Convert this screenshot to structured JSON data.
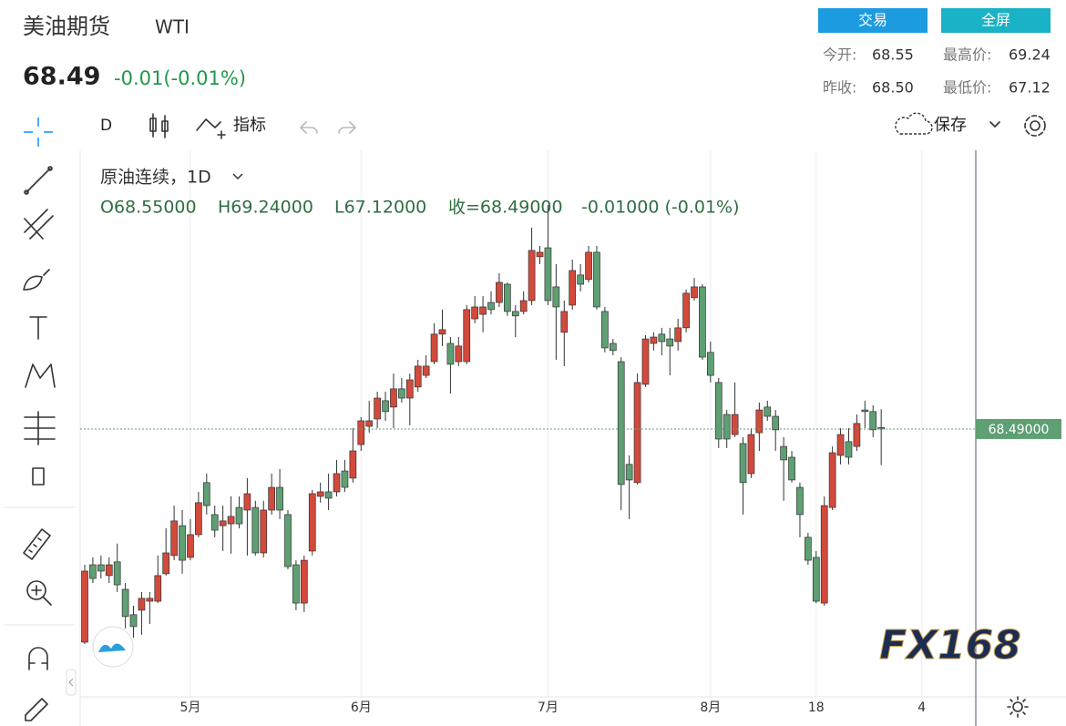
{
  "header": {
    "title": "美油期货",
    "symbol": "WTI",
    "price": "68.49",
    "change": "-0.01(-0.01%)"
  },
  "buttons": [
    "交易",
    "全屏"
  ],
  "stats": [
    {
      "label": "今开:",
      "value": "68.55"
    },
    {
      "label": "最高价:",
      "value": "69.24"
    },
    {
      "label": "昨收:",
      "value": "68.50"
    },
    {
      "label": "最低价:",
      "value": "67.12"
    }
  ],
  "toolbar": {
    "interval": "D",
    "indicators": "指标",
    "save": "保存"
  },
  "legend": {
    "title": "原油连续，1D",
    "open": "O68.55000",
    "high": "H69.24000",
    "low": "L67.12000",
    "close": "收=68.49000",
    "change": "-0.01000 (-0.01%)"
  },
  "watermark": "FX168",
  "chart_data": {
    "type": "candlestick",
    "up_color": "#d24a3c",
    "down_color": "#5f9f74",
    "ylim": [
      58.35,
      79.04
    ],
    "last_price_label": "68.49000",
    "x_extra_label": "4",
    "categories": [
      null,
      null,
      null,
      null,
      null,
      null,
      null,
      null,
      null,
      null,
      null,
      null,
      null,
      "5月",
      null,
      null,
      null,
      null,
      null,
      null,
      null,
      null,
      null,
      null,
      null,
      null,
      null,
      null,
      null,
      null,
      null,
      null,
      null,
      null,
      "6月",
      null,
      null,
      null,
      null,
      null,
      null,
      null,
      null,
      null,
      null,
      null,
      null,
      null,
      null,
      null,
      null,
      null,
      null,
      null,
      null,
      null,
      null,
      "7月",
      null,
      null,
      null,
      null,
      null,
      null,
      null,
      null,
      null,
      null,
      null,
      null,
      null,
      null,
      null,
      null,
      null,
      null,
      null,
      "8月",
      null,
      null,
      null,
      null,
      null,
      null,
      null,
      null,
      null,
      null,
      null,
      null,
      "18",
      null,
      null,
      null,
      null,
      null,
      null,
      null,
      null
    ],
    "open": [
      60.42,
      63.35,
      63.35,
      62.94,
      63.46,
      62.42,
      61.46,
      61.63,
      61.97,
      61.97,
      63.01,
      63.7,
      64.83,
      63.63,
      64.49,
      66.46,
      65.25,
      64.83,
      64.9,
      65.52,
      65.42,
      65.52,
      63.8,
      65.42,
      66.28,
      65.25,
      63.35,
      61.9,
      63.87,
      65.94,
      66.11,
      66.11,
      66.9,
      66.63,
      67.9,
      68.59,
      68.87,
      69.56,
      69.32,
      70.01,
      69.66,
      70.08,
      70.52,
      71.04,
      72.08,
      71.73,
      71.04,
      71.04,
      72.66,
      72.83,
      73.28,
      73.28,
      73.97,
      72.94,
      72.94,
      73.35,
      75.01,
      75.35,
      73.87,
      72.15,
      73.18,
      74.32,
      74.15,
      75.18,
      72.94,
      71.73,
      71.04,
      67.15,
      66.46,
      70.18,
      71.73,
      72.08,
      71.9,
      71.8,
      72.32,
      73.46,
      73.87,
      71.39,
      70.25,
      69.04,
      68.28,
      67.94,
      66.8,
      68.35,
      69.32,
      68.97,
      67.83,
      67.42,
      66.28,
      64.39,
      63.63,
      61.9,
      65.52,
      67.49,
      68.01,
      67.83,
      69.21,
      69.15,
      68.55
    ],
    "high": [
      63.35,
      63.63,
      63.7,
      63.63,
      64.15,
      62.66,
      61.8,
      62.32,
      62.32,
      63.7,
      64.73,
      65.59,
      65.42,
      65.08,
      66.11,
      66.8,
      65.59,
      65.59,
      65.94,
      65.94,
      66.63,
      65.77,
      65.77,
      66.8,
      66.97,
      65.42,
      63.52,
      63.7,
      66.18,
      66.46,
      66.8,
      67.32,
      67.32,
      68.52,
      68.94,
      69.56,
      69.9,
      69.9,
      70.59,
      70.42,
      70.59,
      71.11,
      71.28,
      72.49,
      73.01,
      71.97,
      71.97,
      73.18,
      73.52,
      73.52,
      73.7,
      74.39,
      74.04,
      73.18,
      73.7,
      76.11,
      75.42,
      76.97,
      74.73,
      73.35,
      74.9,
      74.73,
      75.42,
      75.42,
      73.11,
      71.9,
      71.21,
      67.49,
      70.59,
      72.04,
      72.15,
      72.32,
      72.32,
      72.66,
      73.77,
      74.21,
      73.97,
      71.8,
      70.42,
      69.21,
      70.25,
      68.18,
      68.52,
      69.49,
      69.56,
      69.21,
      68.18,
      67.66,
      66.46,
      64.56,
      63.87,
      65.94,
      67.83,
      68.52,
      68.52,
      69.04,
      69.56,
      69.39,
      69.24
    ],
    "low": [
      60.35,
      62.66,
      62.83,
      62.66,
      62.32,
      60.94,
      60.59,
      60.7,
      61.11,
      61.9,
      62.94,
      63.52,
      63.01,
      63.52,
      64.39,
      65.25,
      64.39,
      63.87,
      63.77,
      64.73,
      63.7,
      63.7,
      63.63,
      65.25,
      65.08,
      63.18,
      61.63,
      61.56,
      63.7,
      65.7,
      65.42,
      65.94,
      66.11,
      66.46,
      67.66,
      68.35,
      68.52,
      68.8,
      68.52,
      69.49,
      68.63,
      69.9,
      70.42,
      70.94,
      71.63,
      69.83,
      70.87,
      70.94,
      72.49,
      72.15,
      72.83,
      73.11,
      72.77,
      71.97,
      72.83,
      73.18,
      74.73,
      73.18,
      71.11,
      70.87,
      73.01,
      73.7,
      74.04,
      73.01,
      71.39,
      71.28,
      65.42,
      65.08,
      66.39,
      70.08,
      71.46,
      71.28,
      70.52,
      71.46,
      72.15,
      73.35,
      71.11,
      70.25,
      67.77,
      67.77,
      68.18,
      65.25,
      66.63,
      67.66,
      68.8,
      67.66,
      65.77,
      66.46,
      64.39,
      63.35,
      61.9,
      61.8,
      65.42,
      67.15,
      67.15,
      67.66,
      68.52,
      68.18,
      67.12
    ],
    "close": [
      63.11,
      62.83,
      63.11,
      63.35,
      62.59,
      61.39,
      61.01,
      62.08,
      62.08,
      62.94,
      63.8,
      65.01,
      63.52,
      64.49,
      65.7,
      65.59,
      64.66,
      65.01,
      65.18,
      64.9,
      66.04,
      63.8,
      65.42,
      66.28,
      65.42,
      63.28,
      61.9,
      63.52,
      66.04,
      66.11,
      65.87,
      66.8,
      66.28,
      67.66,
      68.8,
      68.8,
      69.66,
      69.15,
      70.01,
      69.66,
      70.35,
      70.87,
      70.87,
      72.08,
      72.25,
      70.94,
      71.63,
      73.01,
      73.11,
      73.11,
      73.01,
      74.04,
      72.94,
      72.77,
      73.35,
      75.25,
      75.18,
      73.35,
      73.11,
      72.94,
      74.49,
      73.97,
      75.18,
      73.11,
      71.56,
      71.46,
      66.39,
      66.56,
      70.25,
      71.9,
      71.97,
      71.8,
      71.63,
      72.32,
      73.63,
      73.87,
      71.21,
      70.52,
      68.11,
      68.11,
      69.04,
      66.46,
      68.28,
      69.21,
      68.97,
      68.46,
      67.32,
      66.56,
      65.25,
      63.52,
      61.97,
      65.59,
      67.59,
      68.28,
      67.42,
      68.7,
      69.15,
      68.46,
      68.49
    ]
  }
}
